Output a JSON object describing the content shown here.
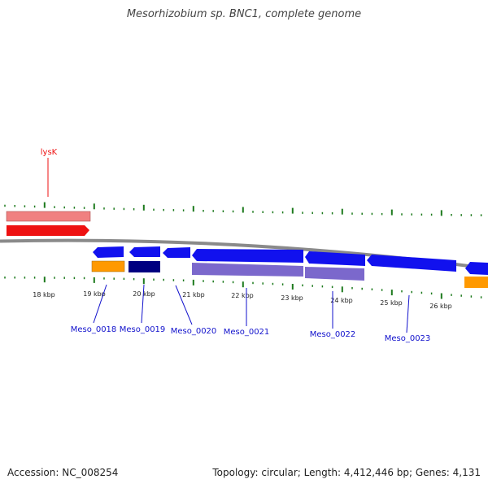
{
  "title": "Mesorhizobium sp. BNC1, complete genome",
  "footer": {
    "accession": "Accession: NC_008254",
    "summary": "Topology: circular; Length: 4,412,446 bp; Genes: 4,131"
  },
  "colors": {
    "backbone": "#8a8a8a",
    "tick": "#1c7a1c",
    "label_red": "#ee1111",
    "label_blue": "#1111cc"
  },
  "scale_labels": [
    "18 kbp",
    "19 kbp",
    "20 kbp",
    "21 kbp",
    "22 kbp",
    "23 kbp",
    "24 kbp",
    "25 kbp",
    "26 kbp"
  ],
  "features": [
    {
      "label": "lysK",
      "color": "#ee1111",
      "strand": "forward"
    },
    {
      "label": "Meso_0018",
      "color": "#1111cc",
      "strand": "reverse"
    },
    {
      "label": "Meso_0019",
      "color": "#1111cc",
      "strand": "reverse"
    },
    {
      "label": "Meso_0020",
      "color": "#1111cc",
      "strand": "reverse"
    },
    {
      "label": "Meso_0021",
      "color": "#1111cc",
      "strand": "reverse"
    },
    {
      "label": "Meso_0022",
      "color": "#1111cc",
      "strand": "reverse"
    },
    {
      "label": "Meso_0023",
      "color": "#1111cc",
      "strand": "reverse"
    }
  ]
}
